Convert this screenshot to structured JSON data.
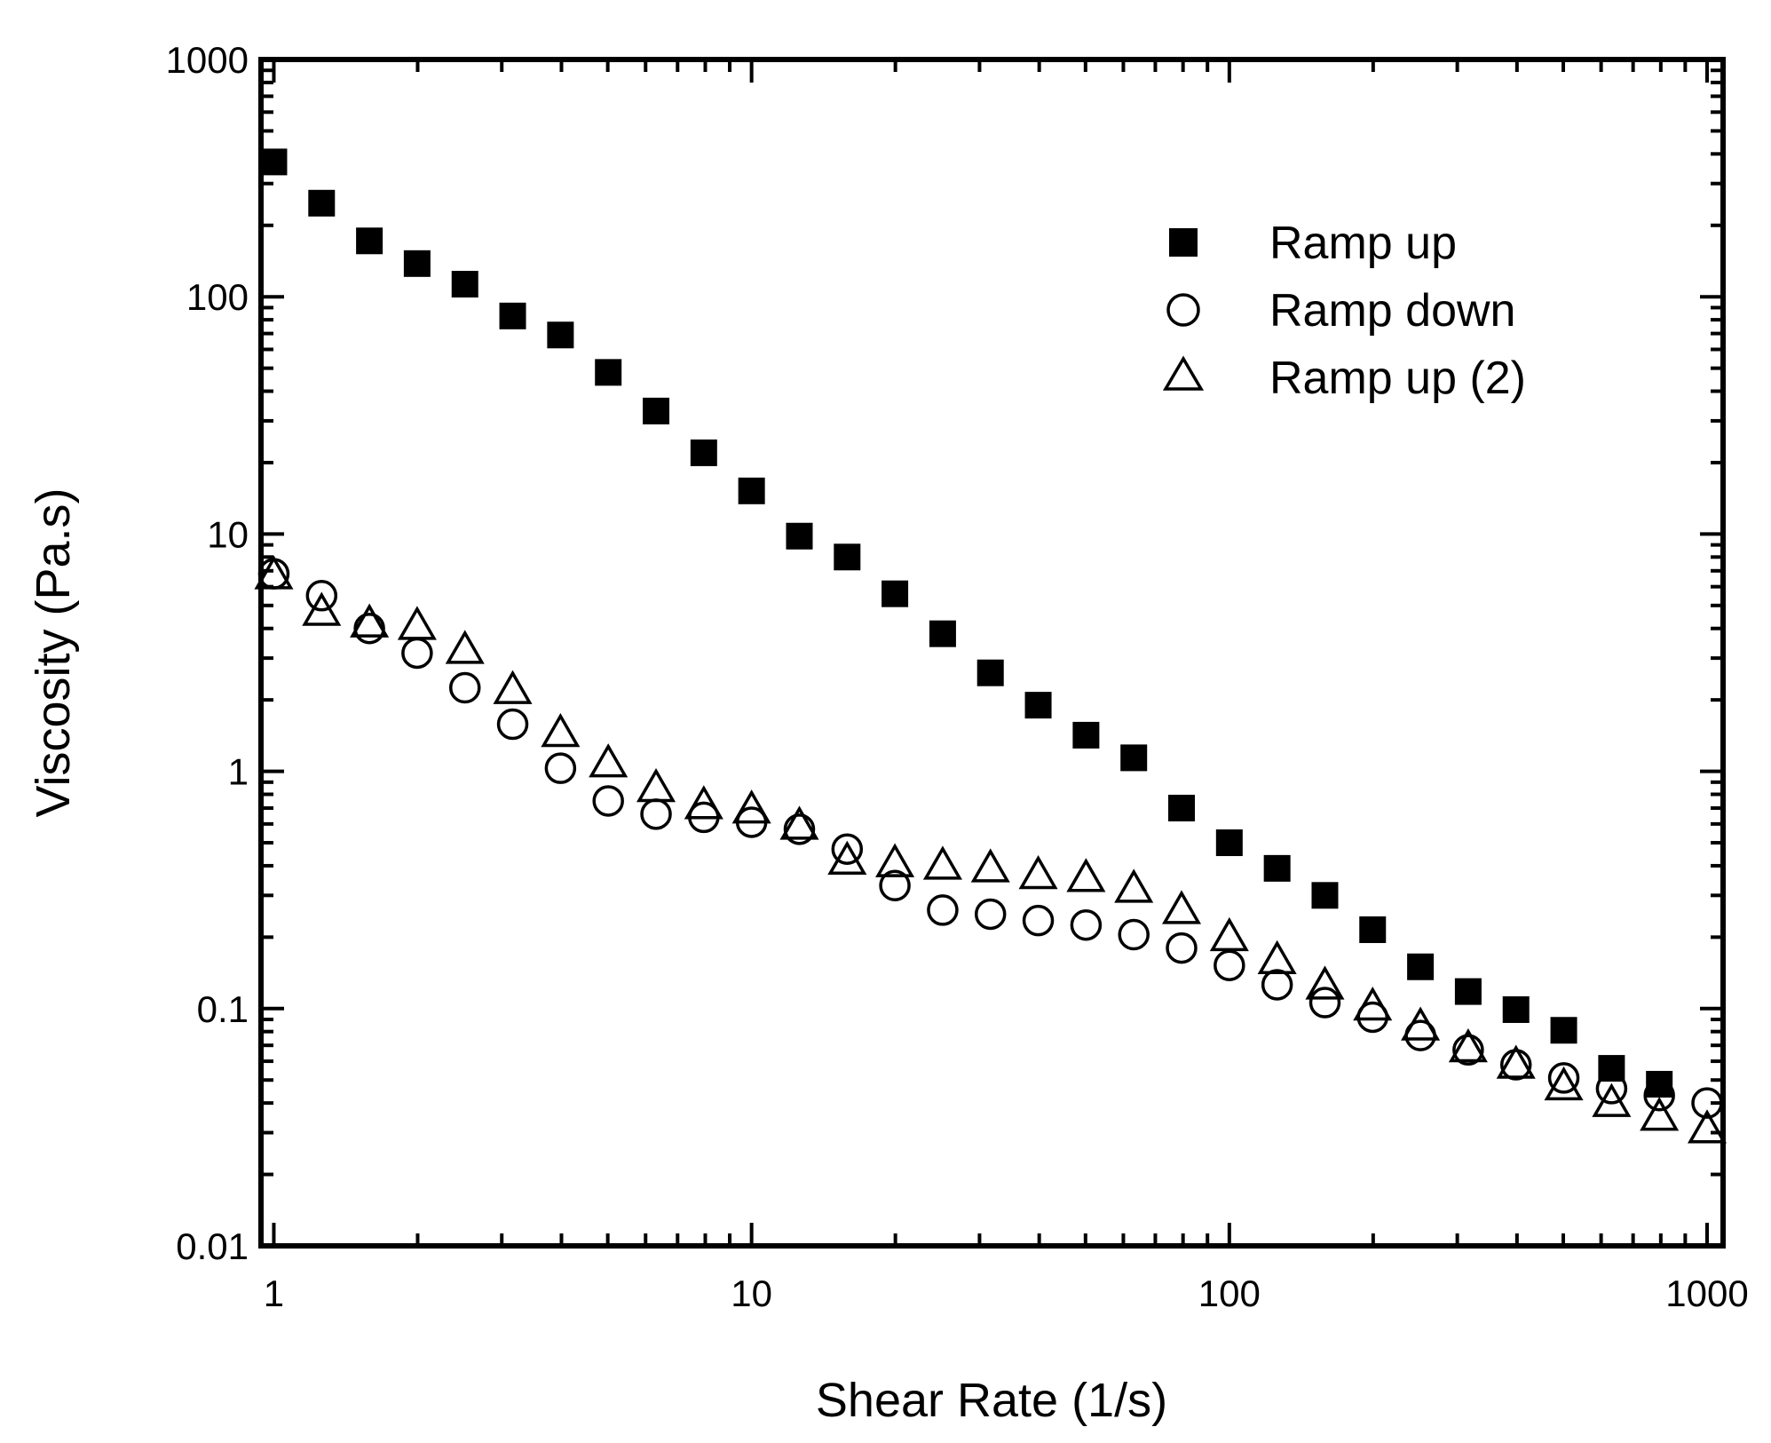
{
  "chart_data": {
    "type": "scatter",
    "title": "",
    "xlabel": "Shear Rate (1/s)",
    "ylabel": "Viscosity (Pa.s)",
    "xscale": "log",
    "yscale": "log",
    "xlim": [
      0.94,
      1080
    ],
    "ylim": [
      0.01,
      1000
    ],
    "xticks": [
      1,
      10,
      100,
      1000
    ],
    "xtick_labels": [
      "1",
      "10",
      "100",
      "1000"
    ],
    "yticks": [
      0.01,
      0.1,
      1,
      10,
      100,
      1000
    ],
    "ytick_labels": [
      "0.01",
      "0.1",
      "1",
      "10",
      "100",
      "1000"
    ],
    "legend_position": "top-right",
    "grid": false,
    "x": [
      1,
      1.259,
      1.585,
      1.995,
      2.512,
      3.162,
      3.981,
      5.012,
      6.31,
      7.943,
      10,
      12.59,
      15.85,
      19.95,
      25.12,
      31.62,
      39.81,
      50.12,
      63.1,
      79.43,
      100,
      125.9,
      158.5,
      199.5,
      251.2,
      316.2,
      398.1,
      501.2,
      631,
      794.3,
      1000
    ],
    "series": [
      {
        "name": "Ramp up",
        "marker": "filled-square",
        "values": [
          370,
          248,
          172,
          138,
          113,
          83,
          69,
          48,
          33,
          22,
          15.2,
          9.8,
          8.0,
          5.6,
          3.8,
          2.6,
          1.9,
          1.42,
          1.14,
          0.7,
          0.5,
          0.39,
          0.3,
          0.215,
          0.15,
          0.118,
          0.099,
          0.081,
          0.056,
          0.048,
          null
        ]
      },
      {
        "name": "Ramp down",
        "marker": "open-circle",
        "values": [
          6.8,
          5.5,
          4.0,
          3.15,
          2.25,
          1.58,
          1.03,
          0.75,
          0.66,
          0.64,
          0.61,
          0.57,
          0.47,
          0.33,
          0.26,
          0.25,
          0.235,
          0.225,
          0.205,
          0.18,
          0.152,
          0.126,
          0.106,
          0.092,
          0.077,
          0.067,
          0.058,
          0.051,
          0.046,
          0.043,
          0.04
        ]
      },
      {
        "name": "Ramp up (2)",
        "marker": "open-triangle",
        "values": [
          6.7,
          4.7,
          4.2,
          4.1,
          3.25,
          2.2,
          1.45,
          1.08,
          0.85,
          0.72,
          0.69,
          0.59,
          0.42,
          0.41,
          0.4,
          0.39,
          0.365,
          0.355,
          0.32,
          0.26,
          0.2,
          0.16,
          0.125,
          0.102,
          0.084,
          0.068,
          0.058,
          0.047,
          0.04,
          0.035,
          0.031
        ]
      }
    ]
  }
}
